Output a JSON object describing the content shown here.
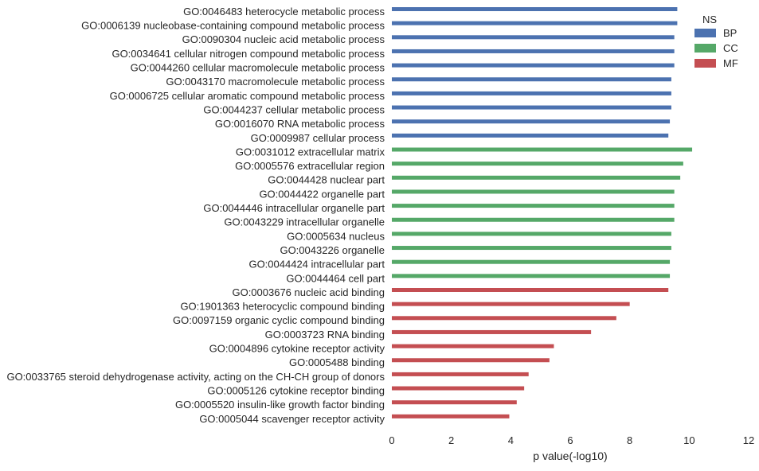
{
  "chart_data": {
    "type": "bar",
    "orientation": "horizontal",
    "title": "",
    "xlabel": "p value(-log10)",
    "ylabel": "",
    "xlim": [
      0,
      12
    ],
    "xticks": [
      0,
      2,
      4,
      6,
      8,
      10,
      12
    ],
    "grid": false,
    "legend": {
      "title": "NS",
      "placement": "top-right",
      "entries": [
        {
          "name": "BP",
          "color": "#4C72B0"
        },
        {
          "name": "CC",
          "color": "#55A868"
        },
        {
          "name": "MF",
          "color": "#C44E52"
        }
      ]
    },
    "categories": [
      "GO:0046483 heterocycle metabolic process",
      "GO:0006139 nucleobase-containing compound metabolic process",
      "GO:0090304 nucleic acid metabolic process",
      "GO:0034641 cellular nitrogen compound metabolic process",
      "GO:0044260 cellular macromolecule metabolic process",
      "GO:0043170 macromolecule metabolic process",
      "GO:0006725 cellular aromatic compound metabolic process",
      "GO:0044237 cellular metabolic process",
      "GO:0016070 RNA metabolic process",
      "GO:0009987 cellular process",
      "GO:0031012 extracellular matrix",
      "GO:0005576 extracellular region",
      "GO:0044428 nuclear part",
      "GO:0044422 organelle part",
      "GO:0044446 intracellular organelle part",
      "GO:0043229 intracellular organelle",
      "GO:0005634 nucleus",
      "GO:0043226 organelle",
      "GO:0044424 intracellular part",
      "GO:0044464 cell part",
      "GO:0003676 nucleic acid binding",
      "GO:1901363 heterocyclic compound binding",
      "GO:0097159 organic cyclic compound binding",
      "GO:0003723 RNA binding",
      "GO:0004896 cytokine receptor activity",
      "GO:0005488 binding",
      "GO:0033765 steroid dehydrogenase activity, acting on the CH-CH group of donors",
      "GO:0005126 cytokine receptor binding",
      "GO:0005520 insulin-like growth factor binding",
      "GO:0005044 scavenger receptor activity"
    ],
    "namespaces": [
      "BP",
      "BP",
      "BP",
      "BP",
      "BP",
      "BP",
      "BP",
      "BP",
      "BP",
      "BP",
      "CC",
      "CC",
      "CC",
      "CC",
      "CC",
      "CC",
      "CC",
      "CC",
      "CC",
      "CC",
      "MF",
      "MF",
      "MF",
      "MF",
      "MF",
      "MF",
      "MF",
      "MF",
      "MF",
      "MF"
    ],
    "values": [
      9.6,
      9.6,
      9.5,
      9.5,
      9.5,
      9.4,
      9.4,
      9.4,
      9.35,
      9.3,
      10.1,
      9.8,
      9.7,
      9.5,
      9.5,
      9.5,
      9.4,
      9.4,
      9.35,
      9.35,
      9.3,
      8.0,
      7.55,
      6.7,
      5.45,
      5.3,
      4.6,
      4.45,
      4.2,
      3.95
    ]
  }
}
